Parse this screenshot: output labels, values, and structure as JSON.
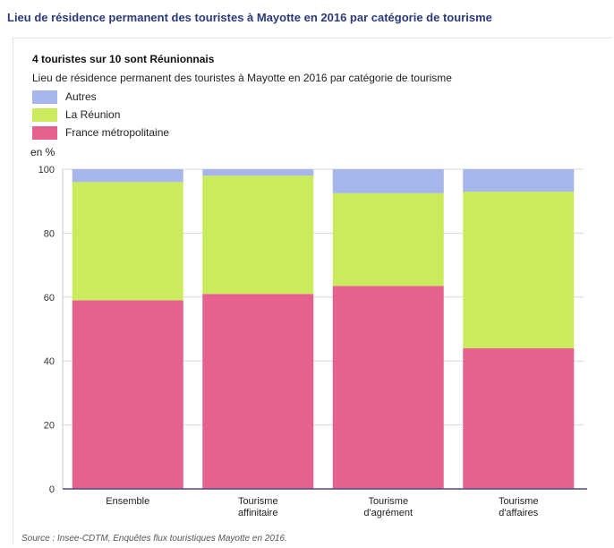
{
  "page_title": "Lieu de résidence permanent des touristes à Mayotte en 2016 par catégorie de tourisme",
  "source": "Source : Insee-CDTM, Enquêtes flux touristiques Mayotte en 2016.",
  "chart_data": {
    "type": "bar",
    "stacked": true,
    "title": "4 touristes sur 10 sont Réunionnais",
    "subtitle": "Lieu de résidence permanent des touristes à Mayotte en 2016 par catégorie de tourisme",
    "ylabel": "en %",
    "xlabel": "",
    "ylim": [
      0,
      100
    ],
    "yticks": [
      0,
      20,
      40,
      60,
      80,
      100
    ],
    "grid": true,
    "legend_position": "top-left",
    "categories": [
      [
        "Ensemble"
      ],
      [
        "Tourisme",
        "affinitaire"
      ],
      [
        "Tourisme",
        "d'agrément"
      ],
      [
        "Tourisme",
        "d'affaires"
      ]
    ],
    "series": [
      {
        "name": "France métropolitaine",
        "color": "#e5628f",
        "values": [
          59,
          61,
          63.5,
          44
        ]
      },
      {
        "name": "La Réunion",
        "color": "#cbeb5e",
        "values": [
          37,
          37,
          29,
          49
        ]
      },
      {
        "name": "Autres",
        "color": "#a6b5ea",
        "values": [
          4,
          2,
          7.5,
          7
        ]
      }
    ],
    "legend_order": [
      "Autres",
      "La Réunion",
      "France métropolitaine"
    ]
  }
}
